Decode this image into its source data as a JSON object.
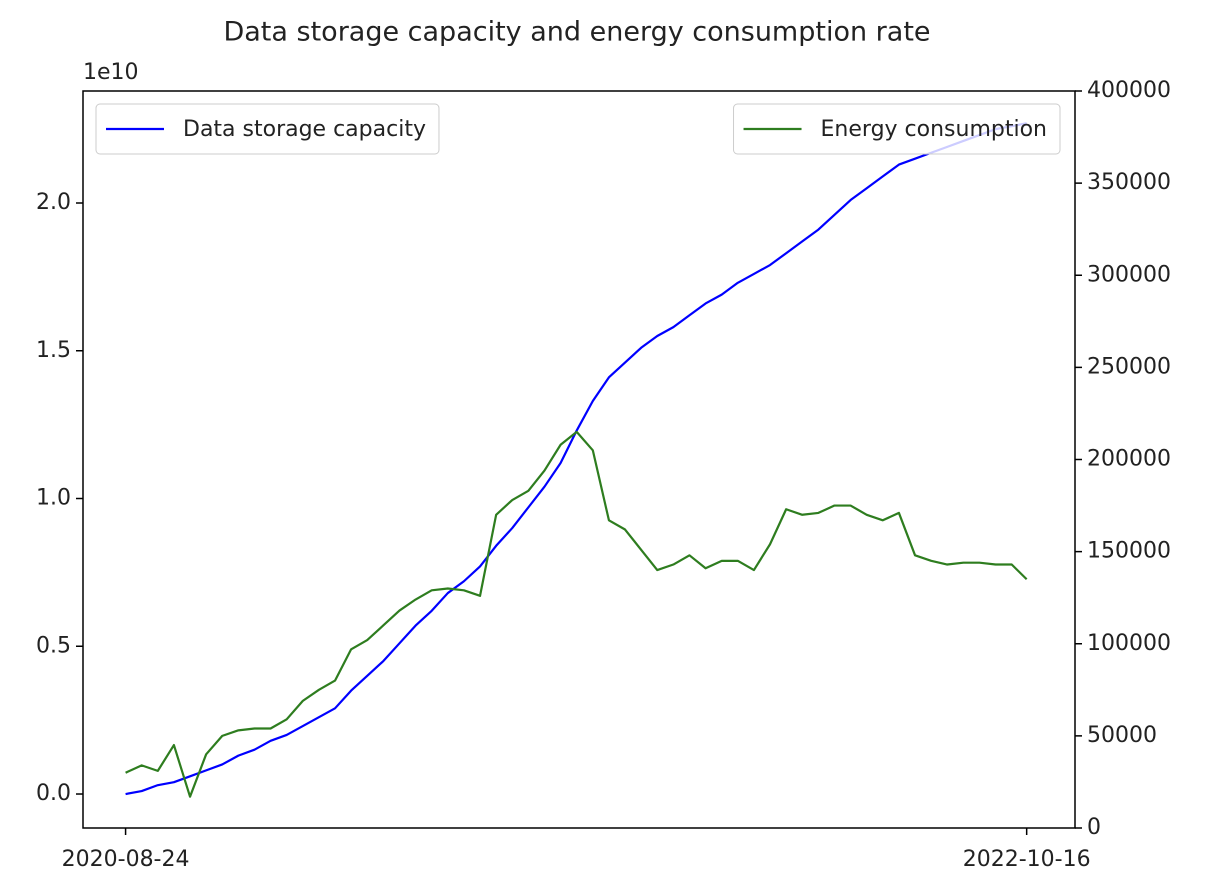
{
  "chart_data": {
    "type": "line",
    "title": "Data storage capacity and energy consumption rate",
    "y_offset_label": "1e10",
    "x": [
      "2020-08-24",
      "2020-09-07",
      "2020-09-21",
      "2020-10-05",
      "2020-10-19",
      "2020-11-02",
      "2020-11-16",
      "2020-11-30",
      "2020-12-14",
      "2020-12-28",
      "2021-01-11",
      "2021-01-25",
      "2021-02-08",
      "2021-02-22",
      "2021-03-08",
      "2021-03-22",
      "2021-04-05",
      "2021-04-19",
      "2021-05-03",
      "2021-05-17",
      "2021-05-31",
      "2021-06-14",
      "2021-06-28",
      "2021-07-12",
      "2021-07-26",
      "2021-08-09",
      "2021-08-23",
      "2021-09-06",
      "2021-09-20",
      "2021-10-04",
      "2021-10-18",
      "2021-11-01",
      "2021-11-15",
      "2021-11-29",
      "2021-12-13",
      "2021-12-27",
      "2022-01-10",
      "2022-01-24",
      "2022-02-07",
      "2022-02-21",
      "2022-03-07",
      "2022-03-21",
      "2022-04-04",
      "2022-04-18",
      "2022-05-02",
      "2022-05-16",
      "2022-05-30",
      "2022-06-13",
      "2022-06-27",
      "2022-07-11",
      "2022-07-25",
      "2022-08-08",
      "2022-08-22",
      "2022-09-05",
      "2022-09-19",
      "2022-10-03",
      "2022-10-16"
    ],
    "series": [
      {
        "name": "Data storage capacity",
        "color": "#0000ff",
        "axis": "y",
        "legend_loc": "upper left",
        "values": [
          0.0,
          0.01,
          0.03,
          0.04,
          0.06,
          0.08,
          0.1,
          0.13,
          0.15,
          0.18,
          0.2,
          0.23,
          0.26,
          0.29,
          0.35,
          0.4,
          0.45,
          0.51,
          0.57,
          0.62,
          0.68,
          0.72,
          0.77,
          0.84,
          0.9,
          0.97,
          1.04,
          1.12,
          1.23,
          1.33,
          1.41,
          1.46,
          1.51,
          1.55,
          1.58,
          1.62,
          1.66,
          1.69,
          1.73,
          1.76,
          1.79,
          1.83,
          1.87,
          1.91,
          1.96,
          2.01,
          2.05,
          2.09,
          2.13,
          2.15,
          2.17,
          2.19,
          2.21,
          2.23,
          2.25,
          2.26,
          2.27
        ]
      },
      {
        "name": "Energy consumption",
        "color": "#2e7d1f",
        "axis": "y2",
        "legend_loc": "upper right",
        "values": [
          30000,
          34000,
          31000,
          45000,
          17000,
          40000,
          50000,
          53000,
          54000,
          54000,
          59000,
          69000,
          75000,
          80000,
          97000,
          102000,
          110000,
          118000,
          124000,
          129000,
          130000,
          129000,
          126000,
          170000,
          178000,
          183000,
          194000,
          208000,
          215000,
          205000,
          167000,
          162000,
          151000,
          140000,
          143000,
          148000,
          141000,
          145000,
          145000,
          140000,
          154000,
          173000,
          170000,
          171000,
          175000,
          175000,
          170000,
          167000,
          171000,
          148000,
          145000,
          143000,
          144000,
          144000,
          143000,
          143000,
          135000
        ]
      }
    ],
    "xlim": [
      "2020-07-18",
      "2022-11-27"
    ],
    "xticks": [
      "2020-08-24",
      "2022-10-16"
    ],
    "ylim": [
      -0.115,
      2.379
    ],
    "yticks": [
      {
        "value": 0,
        "label": "0.0"
      },
      {
        "value": 0.5,
        "label": "0.5"
      },
      {
        "value": 1,
        "label": "1.0"
      },
      {
        "value": 1.5,
        "label": "1.5"
      },
      {
        "value": 2,
        "label": "2.0"
      }
    ],
    "y2lim": [
      0,
      400000
    ],
    "y2ticks": [
      0,
      50000,
      100000,
      150000,
      200000,
      250000,
      300000,
      350000,
      400000
    ],
    "grid": false
  }
}
